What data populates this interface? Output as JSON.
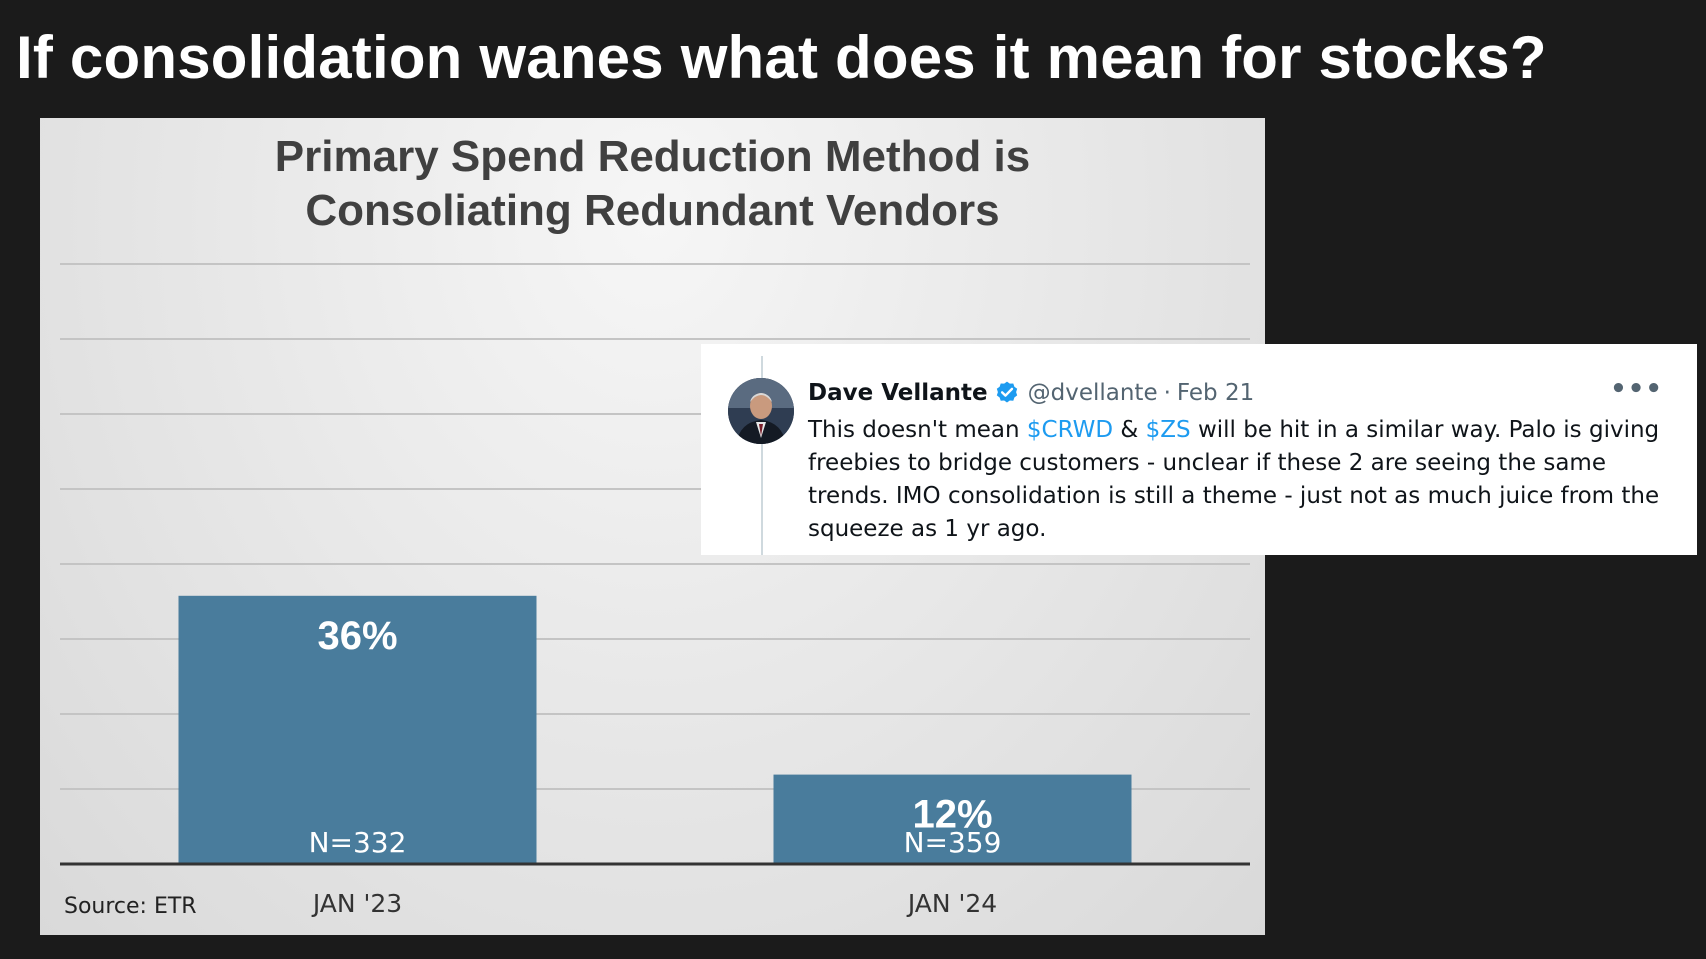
{
  "slide": {
    "title": "If consolidation wanes what does it mean for stocks?"
  },
  "chart_data": {
    "type": "bar",
    "title_lines": [
      "Primary Spend Reduction Method is",
      "Consoliating Redundant Vendors"
    ],
    "categories": [
      "JAN '23",
      "JAN '24"
    ],
    "values": [
      36,
      12
    ],
    "value_labels": [
      "36%",
      "12%"
    ],
    "sample_labels": [
      "N=332",
      "N=359"
    ],
    "ylim": [
      0,
      40
    ],
    "grid": true,
    "bar_color": "#497c9c",
    "source": "Source: ETR"
  },
  "tweet": {
    "author": "Dave Vellante",
    "handle": "@dvellante",
    "separator": "·",
    "date": "Feb 21",
    "more_icon": "more-horizontal-icon",
    "verified_icon": "verified-badge-icon",
    "accent_color": "#1d9bf0",
    "text_parts": [
      {
        "text": "This doesn't mean ",
        "type": "plain"
      },
      {
        "text": "$CRWD",
        "type": "cashtag"
      },
      {
        "text": " & ",
        "type": "plain"
      },
      {
        "text": "$ZS",
        "type": "cashtag"
      },
      {
        "text": " will be hit in a similar way. Palo is giving freebies to bridge customers - unclear if these 2 are seeing the same trends. IMO consolidation is still a theme - just not as much juice from the squeeze as 1 yr ago.",
        "type": "plain"
      }
    ]
  }
}
